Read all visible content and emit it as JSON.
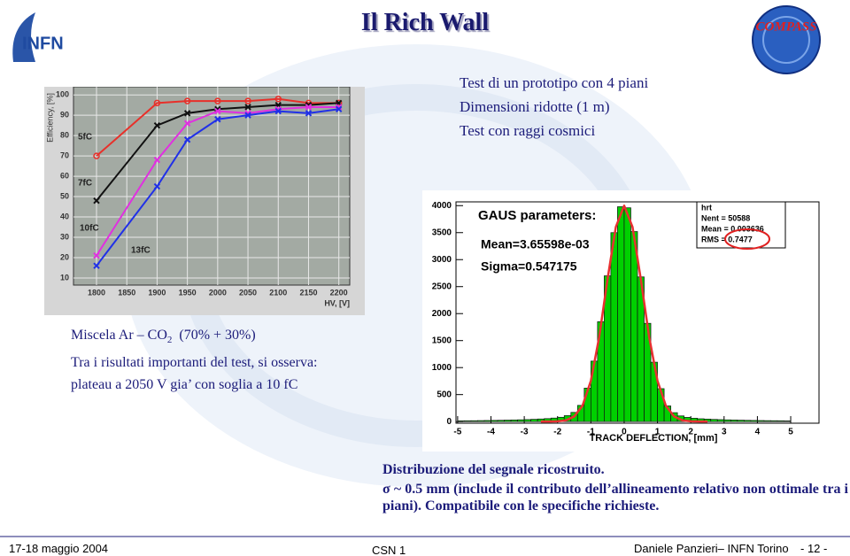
{
  "header": {
    "title": "Il Rich Wall",
    "logo_left": "INFN",
    "logo_right": "COMPASS"
  },
  "intro": [
    "Test di un prototipo con 4 piani",
    "Dimensioni ridotte (1 m)",
    "Test con raggi cosmici"
  ],
  "gas": {
    "label": "Miscela Ar – CO",
    "subscript": "2",
    "mix": "(70% + 30%)"
  },
  "notes": [
    "Tra i risultati importanti del test, si osserva:",
    "plateau a 2050 V gia’ con soglia a 10 fC"
  ],
  "caption": {
    "title": "Distribuzione del segnale ricostruito.",
    "text": "σ ~ 0.5 mm (include il contributo dell’allineamento relativo non ottimale tra i piani). Compatibile con le specifiche richieste."
  },
  "footer": {
    "date": "17-18 maggio 2004",
    "session": "CSN 1",
    "author": "Daniele Panzieri– INFN Torino",
    "page": "- 12 -"
  },
  "chart_data": [
    {
      "type": "line",
      "y_label": "Efficiency, [%]",
      "x_label": "HV, [V]",
      "x": [
        1800,
        1900,
        1950,
        2000,
        2050,
        2100,
        2150,
        2200
      ],
      "series": [
        {
          "name": "5fC",
          "color": "#e8302a",
          "marker": "circle",
          "values": [
            70,
            96,
            97,
            97,
            97,
            98,
            96,
            96
          ]
        },
        {
          "name": "7fC",
          "color": "#111111",
          "marker": "cross",
          "values": [
            48,
            85,
            91,
            93,
            94,
            95,
            95,
            96
          ]
        },
        {
          "name": "10fC",
          "color": "#e030e0",
          "marker": "cross",
          "values": [
            21,
            68,
            86,
            92,
            91,
            93,
            94,
            94
          ]
        },
        {
          "name": "13fC",
          "color": "#2030e8",
          "marker": "cross",
          "values": [
            16,
            55,
            78,
            88,
            90,
            92,
            91,
            93
          ]
        }
      ],
      "xlim": [
        1762,
        2218
      ],
      "ylim": [
        6.5,
        104
      ],
      "xticks": [
        1800,
        1850,
        1900,
        1950,
        2000,
        2050,
        2100,
        2150,
        2200
      ],
      "yticks": [
        10,
        20,
        30,
        40,
        50,
        60,
        70,
        80,
        90,
        100
      ],
      "grid": true
    },
    {
      "type": "histogram",
      "x_label": "TRACK DEFLECTION, [mm]",
      "annotations": [
        "GAUS parameters:",
        "Mean=3.65598e-03",
        "Sigma=0.547175"
      ],
      "stats": [
        "hrt",
        "Nent = 50588",
        "Mean = 0.003636",
        "RMS = 0.7477"
      ],
      "color": "#00d000",
      "bins": [
        -5,
        -4.8,
        -4.6,
        -4.4,
        -4.2,
        -4,
        -3.8,
        -3.6,
        -3.4,
        -3.2,
        -3,
        -2.8,
        -2.6,
        -2.4,
        -2.2,
        -2,
        -1.8,
        -1.6,
        -1.4,
        -1.2,
        -1,
        -0.8,
        -0.6,
        -0.4,
        -0.2,
        0,
        0.2,
        0.4,
        0.6,
        0.8,
        1,
        1.2,
        1.4,
        1.6,
        1.8,
        2,
        2.2,
        2.4,
        2.6,
        2.8,
        3,
        3.2,
        3.4,
        3.6,
        3.8,
        4,
        4.2,
        4.4,
        4.6,
        4.8,
        5
      ],
      "values": [
        14,
        15,
        16,
        18,
        20,
        22,
        24,
        27,
        30,
        33,
        37,
        42,
        48,
        55,
        65,
        80,
        110,
        170,
        300,
        620,
        1120,
        1850,
        2700,
        3500,
        3980,
        3960,
        3520,
        2680,
        1820,
        1100,
        610,
        290,
        165,
        105,
        78,
        62,
        52,
        46,
        40,
        36,
        32,
        29,
        26,
        23,
        21,
        19,
        17,
        16,
        15,
        13
      ],
      "fit": {
        "color": "#e83030",
        "x": [
          -2.5,
          -2.25,
          -2,
          -1.75,
          -1.5,
          -1.25,
          -1,
          -0.75,
          -0.5,
          -0.25,
          0,
          0.25,
          0.5,
          0.75,
          1,
          1.25,
          1.5,
          1.75,
          2,
          2.25,
          2.5
        ],
        "values": [
          0,
          1,
          5,
          24,
          94,
          296,
          755,
          1566,
          2636,
          3605,
          4000,
          3605,
          2636,
          1566,
          755,
          296,
          94,
          24,
          5,
          1,
          0
        ]
      },
      "xlim": [
        -5.05,
        5.85
      ],
      "ylim": [
        -30,
        4070
      ],
      "xticks": [
        -5,
        -4,
        -3,
        -2,
        -1,
        0,
        1,
        2,
        3,
        4,
        5
      ],
      "yticks": [
        0,
        500,
        1000,
        1500,
        2000,
        2500,
        3000,
        3500,
        4000
      ]
    }
  ]
}
